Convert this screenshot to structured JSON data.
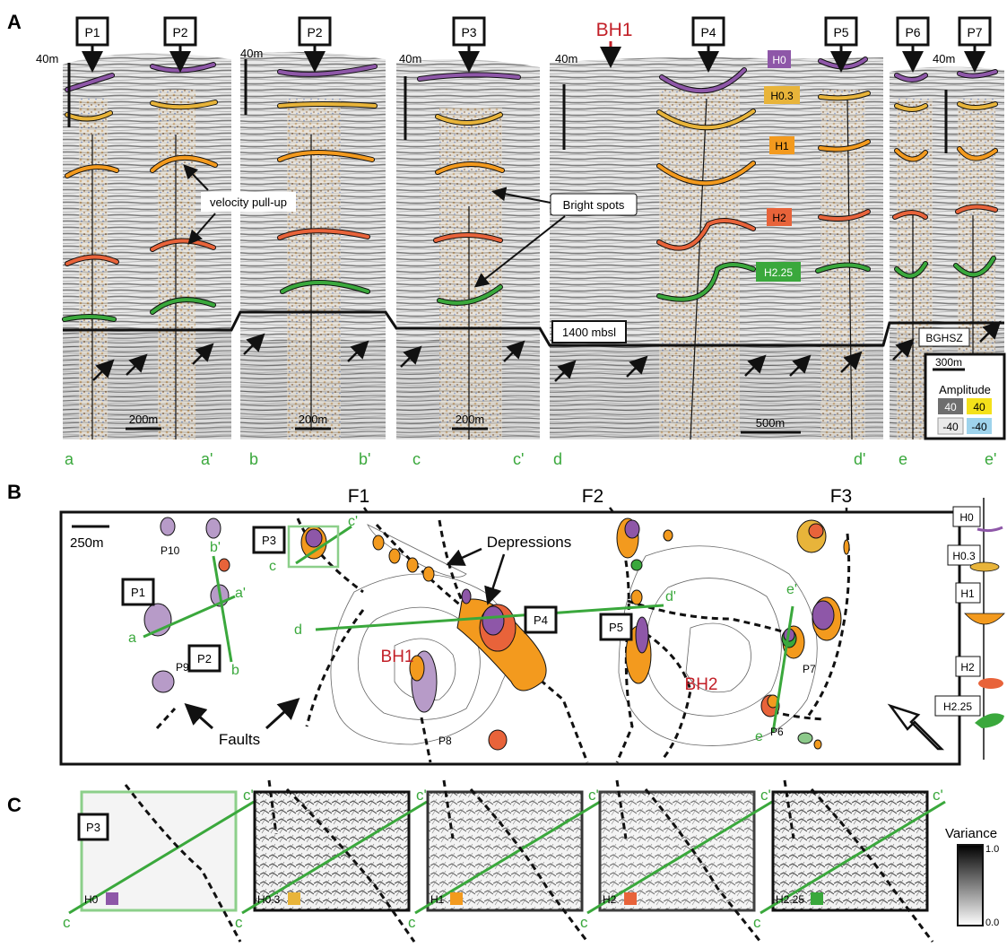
{
  "panels": {
    "A": "A",
    "B": "B",
    "C": "C"
  },
  "colors": {
    "H0": "#8e57a8",
    "H0.3": "#e8b43a",
    "H1": "#f39a1e",
    "H2": "#e8633a",
    "H2.25": "#3aa83c",
    "section_label": "#3aa83c",
    "borehole": "#c21f27",
    "fault_line": "#111111",
    "profile_line": "#3aa83c"
  },
  "panel_a": {
    "pointers": [
      "P1",
      "P2",
      "P2",
      "P3",
      "P4",
      "P5",
      "P6",
      "P7"
    ],
    "borehole": "BH1",
    "depth_labels": [
      "40m",
      "40m",
      "40m",
      "40m",
      "40m"
    ],
    "horizon_labels": [
      "H0",
      "H0.3",
      "H1",
      "H2",
      "H2.25"
    ],
    "annotations": {
      "pullup": "velocity pull-up",
      "bright": "Bright spots",
      "depth": "1400 mbsl",
      "bghsz": "BGHSZ"
    },
    "scale_bars": [
      "200m",
      "200m",
      "200m",
      "500m",
      "300m"
    ],
    "amplitude": {
      "title": "Amplitude",
      "neg_grey": "-40",
      "pos_grey": "40",
      "pos_color": "40",
      "neg_color": "-40"
    },
    "section_ends": [
      "a",
      "a'",
      "b",
      "b'",
      "c",
      "c'",
      "d",
      "d'",
      "e",
      "e'"
    ]
  },
  "panel_b": {
    "faults_top": [
      "F1",
      "F2",
      "F3"
    ],
    "scale": "250m",
    "pockmarks": [
      "P10",
      "P9",
      "P8",
      "P7",
      "P6"
    ],
    "boxed": [
      "P1",
      "P2",
      "P3",
      "P4",
      "P5"
    ],
    "boreholes": [
      "BH1",
      "BH2"
    ],
    "labels": {
      "depressions": "Depressions",
      "faults": "Faults"
    },
    "profile_ends": [
      "a",
      "a'",
      "b",
      "b'",
      "c",
      "c'",
      "d",
      "d'",
      "e",
      "e'"
    ],
    "legend": [
      "H0",
      "H0.3",
      "H1",
      "H2",
      "H2.25"
    ]
  },
  "panel_c": {
    "box_label": "P3",
    "maps": [
      "H0",
      "H0.3",
      "H1",
      "H2",
      "H2.25"
    ],
    "line_ends": [
      "c",
      "c'"
    ],
    "variance": {
      "title": "Variance",
      "max": "1.0",
      "min": "0.0"
    }
  }
}
